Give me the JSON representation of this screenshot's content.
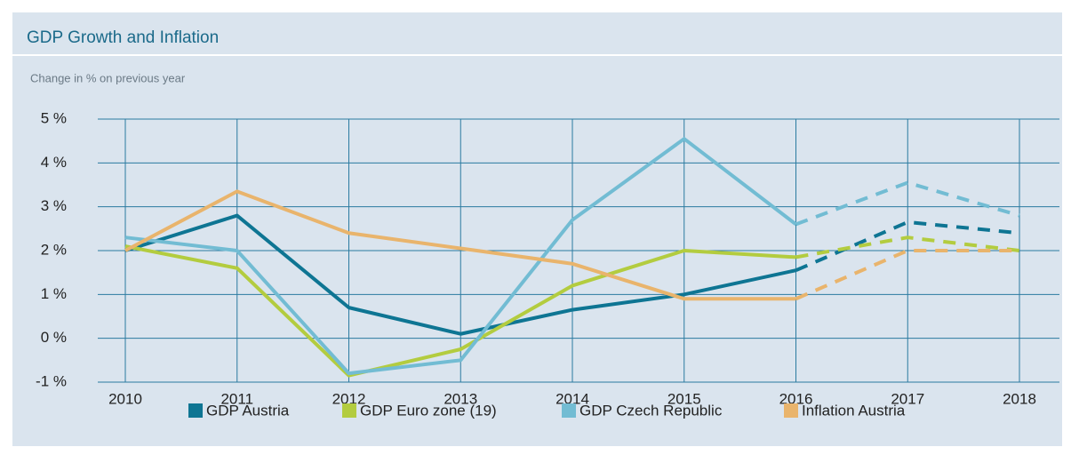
{
  "chart_data": {
    "type": "line",
    "title": "GDP Growth and Inflation",
    "subtitle": "Change in % on previous year",
    "categories": [
      "2010",
      "2011",
      "2012",
      "2013",
      "2014",
      "2015",
      "2016",
      "2017",
      "2018"
    ],
    "dashed_from": "2016",
    "series": [
      {
        "name": "GDP Austria",
        "color": "#0e7593",
        "values": [
          2.0,
          2.8,
          0.7,
          0.1,
          0.65,
          1.0,
          1.55,
          2.65,
          2.4
        ]
      },
      {
        "name": "GDP Euro zone (19)",
        "color": "#b3cc3f",
        "values": [
          2.1,
          1.6,
          -0.85,
          -0.25,
          1.2,
          2.0,
          1.85,
          2.3,
          2.0
        ]
      },
      {
        "name": "GDP Czech Republic",
        "color": "#72bcd3",
        "values": [
          2.3,
          2.0,
          -0.8,
          -0.5,
          2.7,
          4.55,
          2.6,
          3.55,
          2.8
        ]
      },
      {
        "name": "Inflation Austria",
        "color": "#e9b46c",
        "values": [
          2.0,
          3.35,
          2.4,
          2.05,
          1.7,
          0.9,
          0.9,
          2.0,
          2.0
        ]
      }
    ],
    "ylim": [
      -1,
      5
    ],
    "yticks": [
      {
        "value": -1,
        "label": "-1 %"
      },
      {
        "value": 0,
        "label": "0 %"
      },
      {
        "value": 1,
        "label": "1 %"
      },
      {
        "value": 2,
        "label": "2 %"
      },
      {
        "value": 3,
        "label": "3 %"
      },
      {
        "value": 4,
        "label": "4 %"
      },
      {
        "value": 5,
        "label": "5 %"
      }
    ],
    "grid": true
  }
}
